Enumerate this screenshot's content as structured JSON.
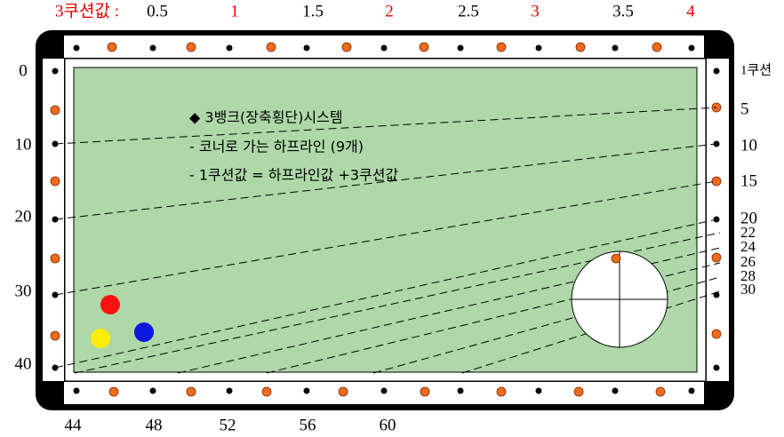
{
  "top_labels": [
    "3쿠션값 :",
    "0.5",
    "1",
    "1.5",
    "2",
    "2.5",
    "3",
    "3.5",
    "4"
  ],
  "left_labels": [
    "0",
    "10",
    "20",
    "30",
    "40"
  ],
  "right_labels": [
    "1쿠션",
    "5",
    "10",
    "15",
    "20",
    "22",
    "24",
    "26",
    "28",
    "30"
  ],
  "bottom_labels": [
    "44",
    "48",
    "52",
    "56",
    "60"
  ],
  "notes": [
    "◆  3뱅크(장축횡단)시스템",
    "-  코너로 가는 하프라인 (9개)",
    "-  1쿠션값 = 하프라인값 +3쿠션값"
  ]
}
